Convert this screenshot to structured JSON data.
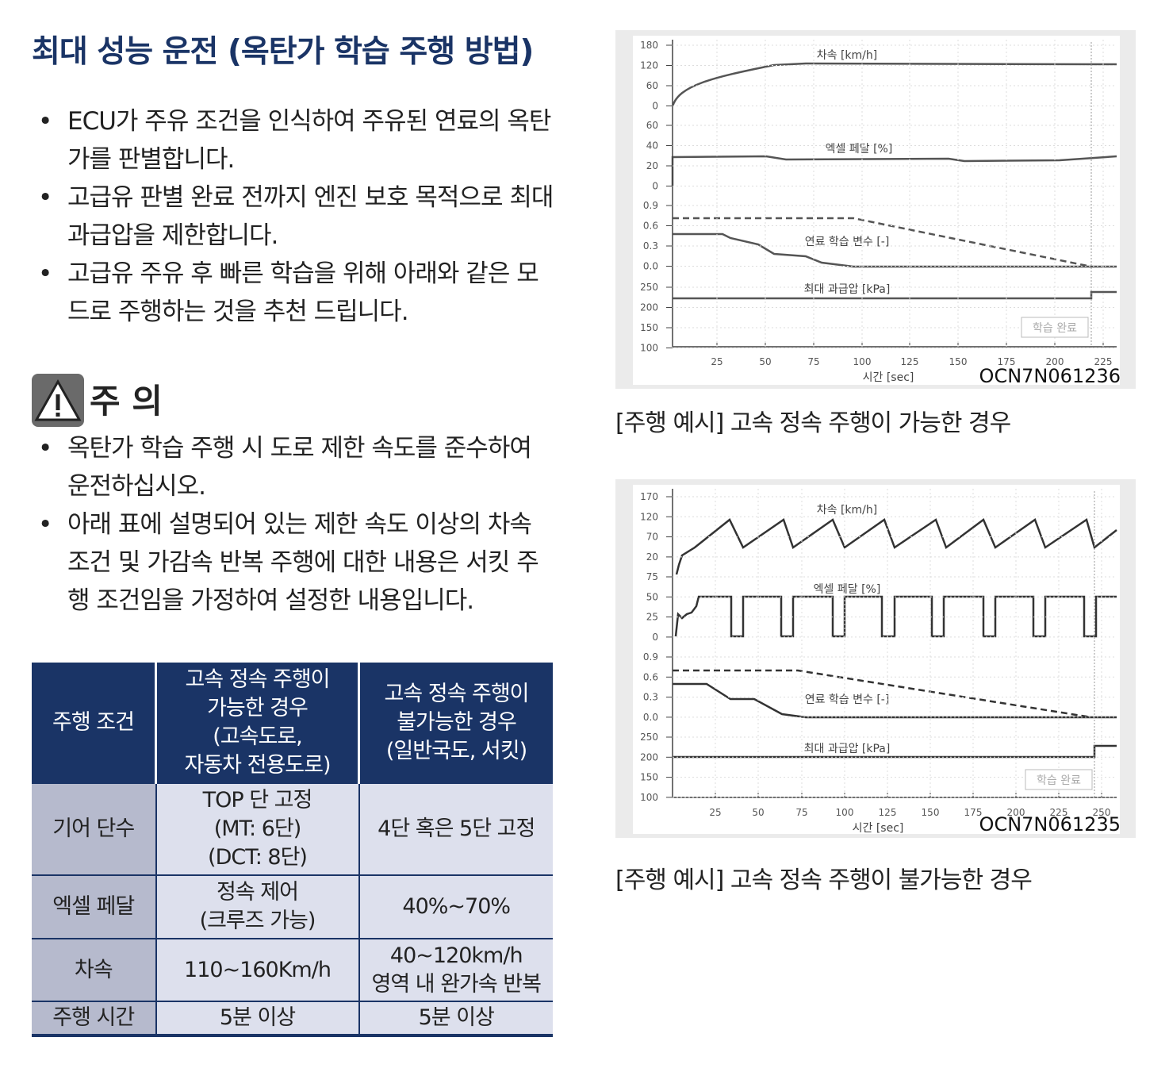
{
  "title": "최대 성능 운전 (옥탄가 학습 주행 방법)",
  "bullets": [
    "ECU가 주유 조건을 인식하여 주유된 연료의 옥탄가를 판별합니다.",
    "고급유 판별 완료 전까지 엔진 보호 목적으로 최대 과급압을 제한합니다.",
    "고급유 주유 후 빠른 학습을 위해 아래와 같은 모드로 주행하는 것을 추천 드립니다."
  ],
  "caution": {
    "label": "주 의",
    "bullets": [
      "옥탄가 학습 주행 시 도로 제한 속도를 준수하여 운전하십시오.",
      "아래 표에 설명되어 있는 제한 속도 이상의 차속 조건 및 가감속 반복 주행에 대한 내용은 서킷 주행 조건임을 가정하여 설정한 내용입니다."
    ]
  },
  "table": {
    "header": [
      "주행 조건",
      "고속 정속 주행이\n가능한 경우\n(고속도로,\n자동차 전용도로)",
      "고속 정속 주행이\n불가능한 경우\n(일반국도, 서킷)"
    ],
    "rows": [
      [
        "기어 단수",
        "TOP 단 고정\n(MT: 6단)\n(DCT: 8단)",
        "4단 혹은 5단 고정"
      ],
      [
        "엑셀 페달",
        "정속 제어\n(크루즈 가능)",
        "40%~70%"
      ],
      [
        "차속",
        "110~160Km/h",
        "40~120km/h\n영역 내 완가속 반복"
      ],
      [
        "주행 시간",
        "5분 이상",
        "5분 이상"
      ]
    ]
  },
  "figures": [
    {
      "panels": [
        {
          "label": "차속 [km/h]",
          "ticks": [
            "180",
            "120",
            "60",
            "0"
          ]
        },
        {
          "label": "엑셀 페달 [%]",
          "ticks": [
            "60",
            "40",
            "20",
            "0"
          ]
        },
        {
          "label": "연료 학습 변수 [-]",
          "ticks": [
            "0.9",
            "0.6",
            "0.3",
            "0.0"
          ]
        },
        {
          "label": "최대 과급압 [kPa]",
          "ticks": [
            "250",
            "200",
            "150",
            "100"
          ]
        }
      ],
      "xticks": [
        "25",
        "50",
        "75",
        "100",
        "125",
        "150",
        "175",
        "200",
        "225"
      ],
      "xlabel": "시간 [sec]",
      "badge": "학습 완료",
      "code": "OCN7N061236",
      "caption": "[주행 예시] 고속 정속 주행이 가능한 경우"
    },
    {
      "panels": [
        {
          "label": "차속 [km/h]",
          "ticks": [
            "170",
            "120",
            "70",
            "20"
          ]
        },
        {
          "label": "엑셀 페달 [%]",
          "ticks": [
            "75",
            "50",
            "25",
            "0"
          ]
        },
        {
          "label": "연료 학습 변수 [-]",
          "ticks": [
            "0.9",
            "0.6",
            "0.3",
            "0.0"
          ]
        },
        {
          "label": "최대 과급압 [kPa]",
          "ticks": [
            "250",
            "200",
            "150",
            "100"
          ]
        }
      ],
      "xticks": [
        "25",
        "50",
        "75",
        "100",
        "125",
        "150",
        "175",
        "200",
        "225",
        "250"
      ],
      "xlabel": "시간 [sec]",
      "badge": "학습 완료",
      "code": "OCN7N061235",
      "caption": "[주행 예시] 고속 정속 주행이 불가능한 경우"
    }
  ]
}
